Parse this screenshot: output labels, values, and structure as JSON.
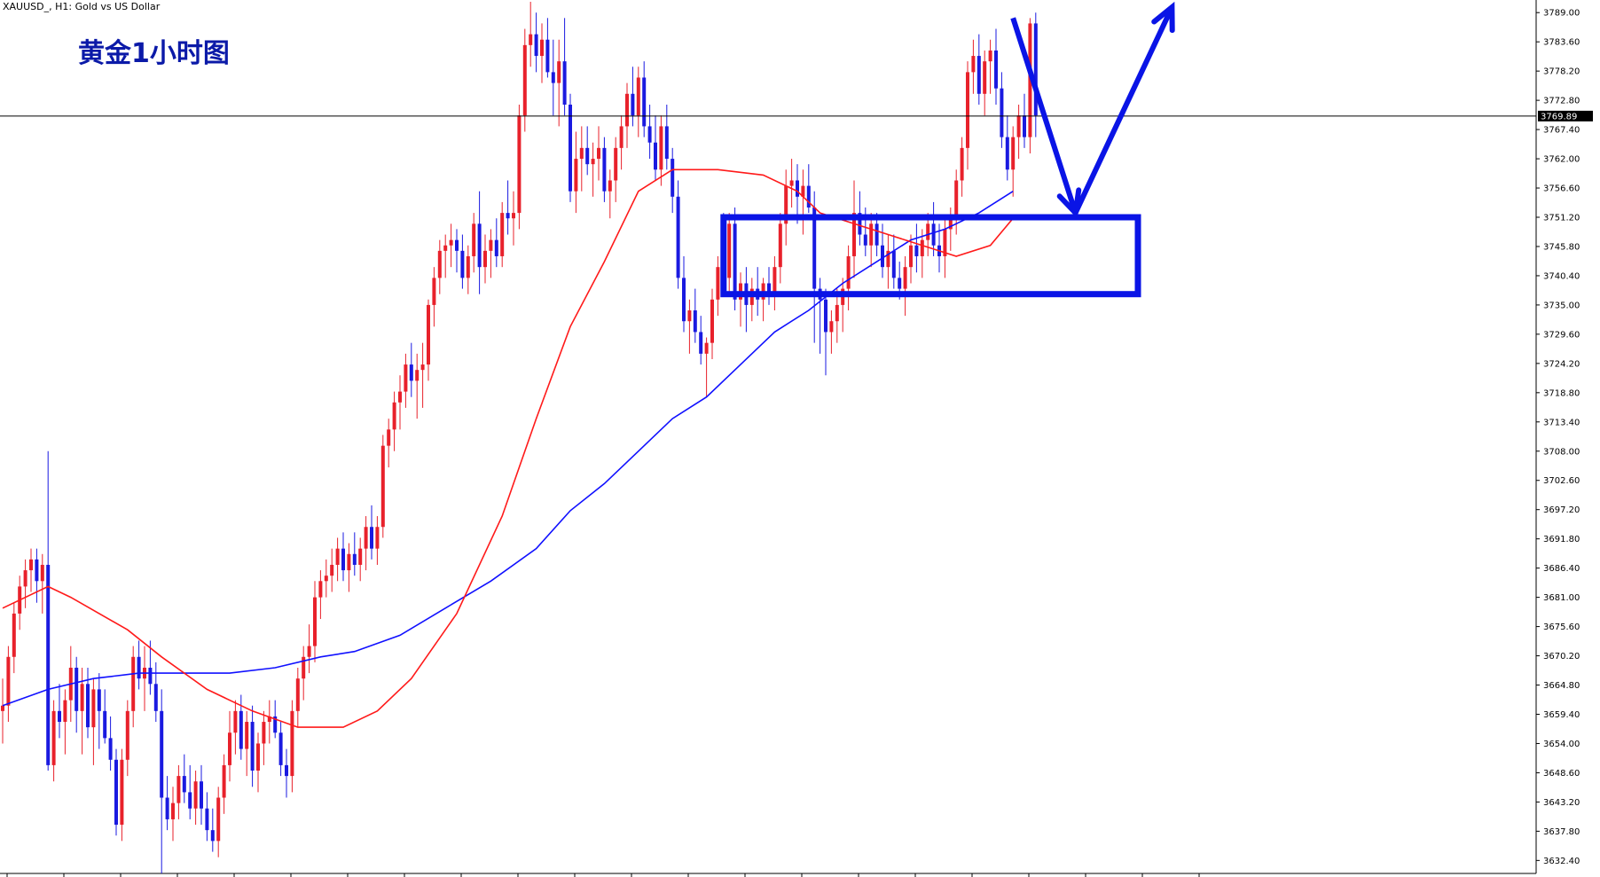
{
  "header": {
    "symbol": "XAUUSD_, H1:  Gold vs US Dollar"
  },
  "chart_data": {
    "type": "candlestick",
    "title": "黄金1小时图",
    "timeframe": "H1",
    "ylim": [
      3630,
      3791
    ],
    "yticks": [
      "3789.00",
      "3783.60",
      "3778.20",
      "3772.80",
      "3767.40",
      "3762.00",
      "3756.60",
      "3751.20",
      "3745.80",
      "3740.40",
      "3735.00",
      "3729.60",
      "3724.20",
      "3718.80",
      "3713.40",
      "3708.00",
      "3702.60",
      "3697.20",
      "3691.80",
      "3686.40",
      "3681.00",
      "3675.60",
      "3670.20",
      "3664.80",
      "3659.40",
      "3654.00",
      "3648.60",
      "3643.20",
      "3637.80",
      "3632.40"
    ],
    "current_price": 3769.89,
    "current_price_label": "3769.89",
    "bull_color": "#e8212b",
    "bear_color": "#1a1ae0",
    "ma_fast_color": "#ff1a1a",
    "ma_slow_color": "#1010ff",
    "annotation_color": "#0a14e6",
    "candles": [
      [
        3660,
        3666,
        3654,
        3661
      ],
      [
        3661,
        3672,
        3658,
        3670
      ],
      [
        3670,
        3680,
        3667,
        3678
      ],
      [
        3678,
        3685,
        3675,
        3683
      ],
      [
        3683,
        3688,
        3679,
        3686
      ],
      [
        3686,
        3690,
        3682,
        3688
      ],
      [
        3688,
        3690,
        3680,
        3684
      ],
      [
        3684,
        3689,
        3678,
        3687
      ],
      [
        3687,
        3708,
        3649,
        3650
      ],
      [
        3650,
        3662,
        3647,
        3660
      ],
      [
        3660,
        3665,
        3655,
        3658
      ],
      [
        3658,
        3664,
        3652,
        3662
      ],
      [
        3662,
        3672,
        3658,
        3668
      ],
      [
        3668,
        3670,
        3656,
        3660
      ],
      [
        3660,
        3668,
        3652,
        3665
      ],
      [
        3665,
        3668,
        3655,
        3657
      ],
      [
        3657,
        3666,
        3650,
        3664
      ],
      [
        3664,
        3667,
        3653,
        3660
      ],
      [
        3660,
        3664,
        3654,
        3655
      ],
      [
        3655,
        3659,
        3649,
        3651
      ],
      [
        3651,
        3653,
        3637,
        3639
      ],
      [
        3639,
        3653,
        3636,
        3651
      ],
      [
        3651,
        3662,
        3648,
        3660
      ],
      [
        3660,
        3672,
        3657,
        3670
      ],
      [
        3670,
        3673,
        3664,
        3666
      ],
      [
        3666,
        3672,
        3660,
        3668
      ],
      [
        3668,
        3673,
        3663,
        3665
      ],
      [
        3665,
        3669,
        3658,
        3660
      ],
      [
        3660,
        3664,
        3630,
        3644
      ],
      [
        3644,
        3648,
        3638,
        3640
      ],
      [
        3640,
        3646,
        3636,
        3643
      ],
      [
        3643,
        3650,
        3640,
        3648
      ],
      [
        3648,
        3652,
        3643,
        3645
      ],
      [
        3645,
        3650,
        3640,
        3642
      ],
      [
        3642,
        3649,
        3639,
        3647
      ],
      [
        3647,
        3650,
        3639,
        3642
      ],
      [
        3642,
        3645,
        3636,
        3638
      ],
      [
        3638,
        3642,
        3634,
        3636
      ],
      [
        3636,
        3646,
        3633,
        3644
      ],
      [
        3644,
        3652,
        3641,
        3650
      ],
      [
        3650,
        3660,
        3647,
        3656
      ],
      [
        3656,
        3662,
        3652,
        3660
      ],
      [
        3660,
        3663,
        3651,
        3653
      ],
      [
        3653,
        3660,
        3648,
        3658
      ],
      [
        3658,
        3661,
        3646,
        3649
      ],
      [
        3649,
        3656,
        3645,
        3654
      ],
      [
        3654,
        3660,
        3650,
        3658
      ],
      [
        3658,
        3662,
        3654,
        3659
      ],
      [
        3659,
        3662,
        3655,
        3656
      ],
      [
        3656,
        3658,
        3648,
        3650
      ],
      [
        3650,
        3653,
        3644,
        3648
      ],
      [
        3648,
        3662,
        3645,
        3660
      ],
      [
        3660,
        3668,
        3657,
        3666
      ],
      [
        3666,
        3672,
        3662,
        3670
      ],
      [
        3670,
        3676,
        3667,
        3672
      ],
      [
        3672,
        3684,
        3669,
        3681
      ],
      [
        3681,
        3686,
        3677,
        3684
      ],
      [
        3684,
        3688,
        3681,
        3685
      ],
      [
        3685,
        3690,
        3682,
        3687
      ],
      [
        3687,
        3692,
        3684,
        3690
      ],
      [
        3690,
        3693,
        3684,
        3686
      ],
      [
        3686,
        3691,
        3682,
        3689
      ],
      [
        3689,
        3693,
        3685,
        3687
      ],
      [
        3687,
        3692,
        3684,
        3690
      ],
      [
        3690,
        3696,
        3686,
        3694
      ],
      [
        3694,
        3698,
        3688,
        3690
      ],
      [
        3690,
        3696,
        3687,
        3694
      ],
      [
        3694,
        3711,
        3692,
        3709
      ],
      [
        3709,
        3714,
        3705,
        3712
      ],
      [
        3712,
        3719,
        3708,
        3717
      ],
      [
        3717,
        3722,
        3712,
        3719
      ],
      [
        3719,
        3726,
        3716,
        3724
      ],
      [
        3724,
        3728,
        3718,
        3721
      ],
      [
        3721,
        3726,
        3714,
        3723
      ],
      [
        3723,
        3728,
        3716,
        3724
      ],
      [
        3724,
        3736,
        3721,
        3735
      ],
      [
        3735,
        3742,
        3731,
        3740
      ],
      [
        3740,
        3747,
        3737,
        3745
      ],
      [
        3745,
        3748,
        3740,
        3746
      ],
      [
        3746,
        3750,
        3742,
        3747
      ],
      [
        3747,
        3749,
        3741,
        3745
      ],
      [
        3745,
        3748,
        3738,
        3740
      ],
      [
        3740,
        3746,
        3737,
        3744
      ],
      [
        3744,
        3752,
        3741,
        3750
      ],
      [
        3750,
        3756,
        3737,
        3742
      ],
      [
        3742,
        3748,
        3739,
        3745
      ],
      [
        3745,
        3749,
        3740,
        3747
      ],
      [
        3747,
        3751,
        3742,
        3744
      ],
      [
        3744,
        3754,
        3742,
        3752
      ],
      [
        3752,
        3758,
        3748,
        3751
      ],
      [
        3751,
        3756,
        3746,
        3752
      ],
      [
        3752,
        3772,
        3749,
        3770
      ],
      [
        3770,
        3786,
        3767,
        3783
      ],
      [
        3783,
        3791,
        3779,
        3785
      ],
      [
        3785,
        3789,
        3778,
        3781
      ],
      [
        3781,
        3787,
        3776,
        3784
      ],
      [
        3784,
        3788,
        3777,
        3778
      ],
      [
        3778,
        3784,
        3770,
        3776
      ],
      [
        3776,
        3784,
        3768,
        3780
      ],
      [
        3780,
        3788,
        3770,
        3772
      ],
      [
        3772,
        3774,
        3754,
        3756
      ],
      [
        3756,
        3767,
        3752,
        3762
      ],
      [
        3762,
        3768,
        3756,
        3764
      ],
      [
        3764,
        3768,
        3759,
        3761
      ],
      [
        3761,
        3765,
        3755,
        3762
      ],
      [
        3762,
        3768,
        3758,
        3764
      ],
      [
        3764,
        3766,
        3754,
        3756
      ],
      [
        3756,
        3760,
        3751,
        3758
      ],
      [
        3758,
        3766,
        3754,
        3764
      ],
      [
        3764,
        3770,
        3760,
        3768
      ],
      [
        3768,
        3776,
        3764,
        3774
      ],
      [
        3774,
        3779,
        3768,
        3770
      ],
      [
        3770,
        3779,
        3766,
        3777
      ],
      [
        3777,
        3780,
        3766,
        3768
      ],
      [
        3768,
        3772,
        3762,
        3765
      ],
      [
        3765,
        3770,
        3758,
        3760
      ],
      [
        3760,
        3770,
        3757,
        3768
      ],
      [
        3768,
        3772,
        3760,
        3762
      ],
      [
        3762,
        3764,
        3752,
        3755
      ],
      [
        3755,
        3758,
        3738,
        3740
      ],
      [
        3740,
        3744,
        3730,
        3732
      ],
      [
        3732,
        3736,
        3726,
        3734
      ],
      [
        3734,
        3738,
        3728,
        3730
      ],
      [
        3730,
        3733,
        3724,
        3726
      ],
      [
        3726,
        3729,
        3718,
        3728
      ],
      [
        3728,
        3738,
        3725,
        3736
      ],
      [
        3736,
        3744,
        3733,
        3742
      ],
      [
        3742,
        3752,
        3738,
        3740
      ],
      [
        3740,
        3752,
        3737,
        3750
      ],
      [
        3750,
        3753,
        3734,
        3736
      ],
      [
        3736,
        3741,
        3731,
        3739
      ],
      [
        3739,
        3742,
        3730,
        3735
      ],
      [
        3735,
        3740,
        3732,
        3738
      ],
      [
        3738,
        3742,
        3733,
        3736
      ],
      [
        3736,
        3740,
        3732,
        3739
      ],
      [
        3739,
        3742,
        3735,
        3737
      ],
      [
        3737,
        3744,
        3734,
        3742
      ],
      [
        3742,
        3752,
        3739,
        3750
      ],
      [
        3750,
        3760,
        3746,
        3757
      ],
      [
        3757,
        3762,
        3753,
        3758
      ],
      [
        3758,
        3761,
        3750,
        3755
      ],
      [
        3755,
        3760,
        3748,
        3757
      ],
      [
        3757,
        3761,
        3752,
        3753
      ],
      [
        3753,
        3756,
        3728,
        3738
      ],
      [
        3738,
        3740,
        3726,
        3736
      ],
      [
        3736,
        3738,
        3722,
        3730
      ],
      [
        3730,
        3734,
        3726,
        3732
      ],
      [
        3732,
        3738,
        3728,
        3735
      ],
      [
        3735,
        3740,
        3730,
        3738
      ],
      [
        3738,
        3746,
        3734,
        3744
      ],
      [
        3744,
        3758,
        3740,
        3752
      ],
      [
        3752,
        3756,
        3746,
        3748
      ],
      [
        3748,
        3753,
        3744,
        3746
      ],
      [
        3746,
        3752,
        3742,
        3750
      ],
      [
        3750,
        3752,
        3744,
        3746
      ],
      [
        3746,
        3750,
        3740,
        3742
      ],
      [
        3742,
        3748,
        3738,
        3745
      ],
      [
        3745,
        3748,
        3738,
        3740
      ],
      [
        3740,
        3743,
        3736,
        3738
      ],
      [
        3738,
        3744,
        3733,
        3742
      ],
      [
        3742,
        3748,
        3739,
        3746
      ],
      [
        3746,
        3750,
        3741,
        3744
      ],
      [
        3744,
        3749,
        3740,
        3747
      ],
      [
        3747,
        3752,
        3744,
        3750
      ],
      [
        3750,
        3754,
        3744,
        3746
      ],
      [
        3746,
        3750,
        3741,
        3744
      ],
      [
        3744,
        3751,
        3740,
        3749
      ],
      [
        3749,
        3753,
        3745,
        3751
      ],
      [
        3751,
        3760,
        3748,
        3758
      ],
      [
        3758,
        3766,
        3755,
        3764
      ],
      [
        3764,
        3780,
        3760,
        3778
      ],
      [
        3778,
        3784,
        3774,
        3781
      ],
      [
        3781,
        3785,
        3772,
        3774
      ],
      [
        3774,
        3782,
        3770,
        3780
      ],
      [
        3780,
        3784,
        3774,
        3782
      ],
      [
        3782,
        3786,
        3772,
        3775
      ],
      [
        3775,
        3778,
        3764,
        3766
      ],
      [
        3766,
        3770,
        3758,
        3760
      ],
      [
        3760,
        3768,
        3755,
        3766
      ],
      [
        3766,
        3772,
        3762,
        3770
      ],
      [
        3770,
        3774,
        3764,
        3766
      ],
      [
        3766,
        3788,
        3763,
        3787
      ],
      [
        3787,
        3789,
        3766,
        3770
      ]
    ],
    "ma_fast": [
      [
        0,
        3679
      ],
      [
        8,
        3683
      ],
      [
        12,
        3681
      ],
      [
        22,
        3675
      ],
      [
        28,
        3670
      ],
      [
        36,
        3664
      ],
      [
        44,
        3660
      ],
      [
        52,
        3657
      ],
      [
        60,
        3657
      ],
      [
        66,
        3660
      ],
      [
        72,
        3666
      ],
      [
        80,
        3678
      ],
      [
        88,
        3696
      ],
      [
        94,
        3714
      ],
      [
        100,
        3731
      ],
      [
        106,
        3743
      ],
      [
        112,
        3756
      ],
      [
        118,
        3760
      ],
      [
        126,
        3760
      ],
      [
        134,
        3759
      ],
      [
        140,
        3756
      ],
      [
        144,
        3752
      ],
      [
        150,
        3750
      ],
      [
        156,
        3748
      ],
      [
        162,
        3746
      ],
      [
        168,
        3744
      ],
      [
        174,
        3746
      ],
      [
        178,
        3751
      ]
    ],
    "ma_slow": [
      [
        0,
        3661
      ],
      [
        8,
        3664
      ],
      [
        16,
        3666
      ],
      [
        24,
        3667
      ],
      [
        32,
        3667
      ],
      [
        40,
        3667
      ],
      [
        48,
        3668
      ],
      [
        56,
        3670
      ],
      [
        62,
        3671
      ],
      [
        70,
        3674
      ],
      [
        78,
        3679
      ],
      [
        86,
        3684
      ],
      [
        94,
        3690
      ],
      [
        100,
        3697
      ],
      [
        106,
        3702
      ],
      [
        112,
        3708
      ],
      [
        118,
        3714
      ],
      [
        124,
        3718
      ],
      [
        130,
        3724
      ],
      [
        136,
        3730
      ],
      [
        142,
        3734
      ],
      [
        148,
        3739
      ],
      [
        154,
        3743
      ],
      [
        160,
        3747
      ],
      [
        166,
        3749
      ],
      [
        172,
        3752
      ],
      [
        178,
        3756
      ]
    ],
    "zone": {
      "x_from": 127,
      "x_to": 200,
      "y_top": 3751.2,
      "y_bottom": 3737.0
    },
    "projection_path": [
      [
        178,
        3788
      ],
      [
        189,
        3752
      ],
      [
        206,
        3790
      ]
    ]
  }
}
